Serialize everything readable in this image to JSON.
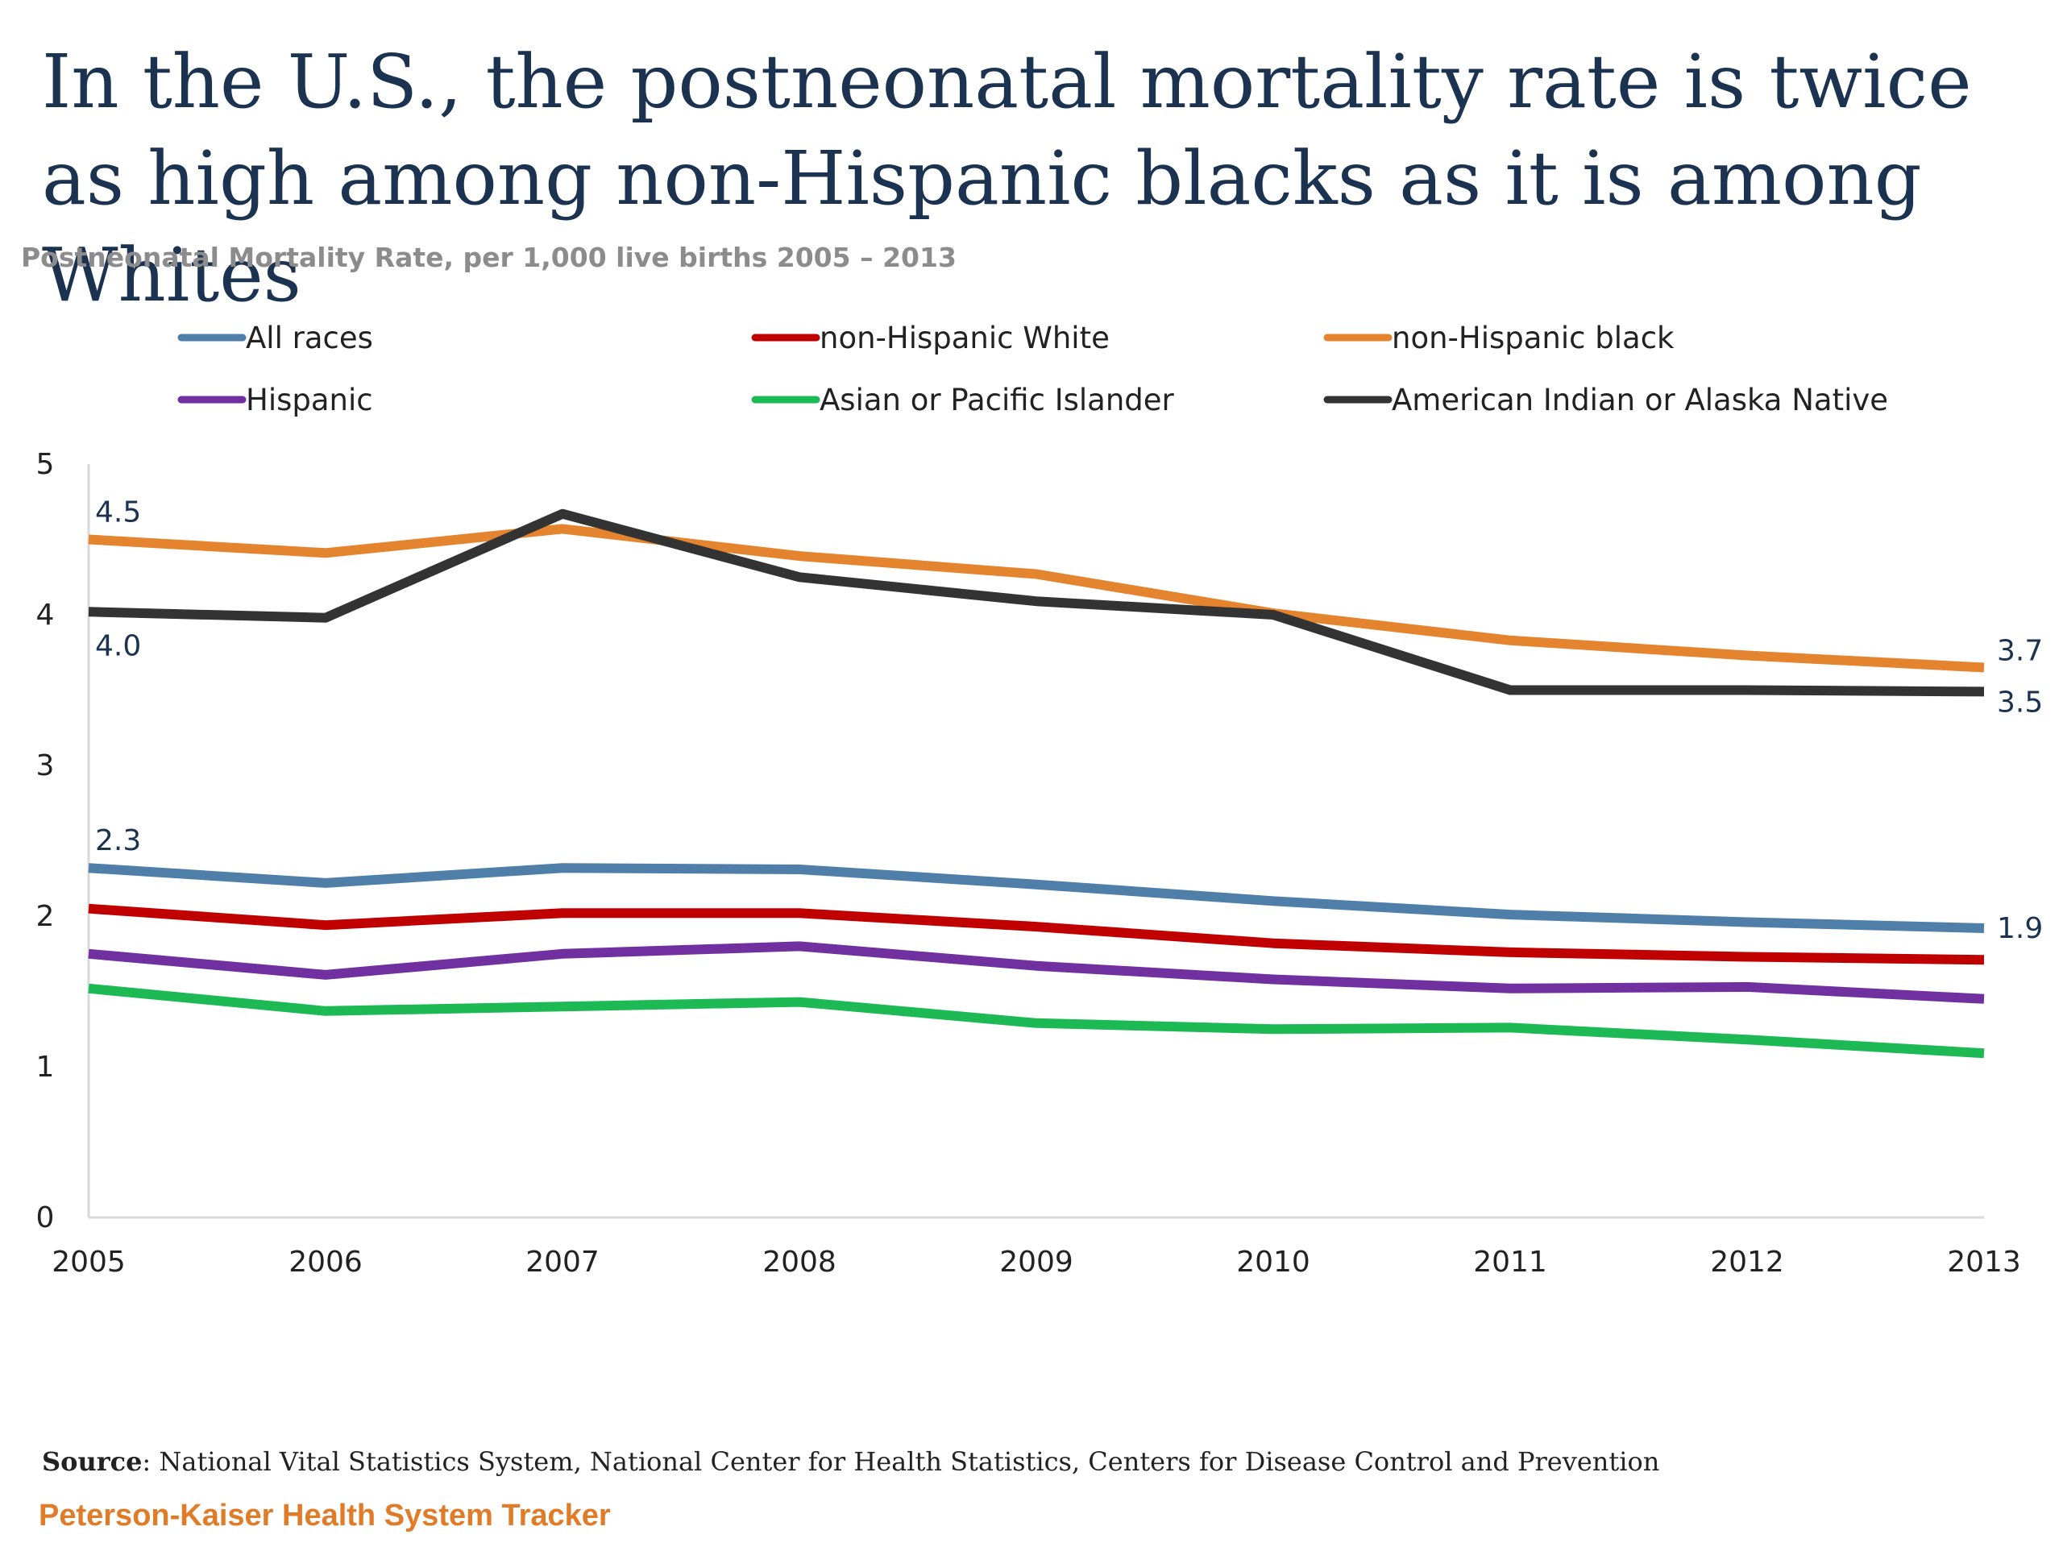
{
  "title": "In the U.S., the postneonatal mortality rate is twice as high among non-Hispanic blacks as it is among Whites",
  "subtitle": "Postneonatal Mortality Rate, per 1,000 live births 2005 – 2013",
  "source_label": "Source",
  "source_text": ": National Vital Statistics System, National Center for Health Statistics, Centers for Disease Control and Prevention",
  "brand": "Peterson-Kaiser Health System Tracker",
  "chart_data": {
    "type": "line",
    "title": "In the U.S., the postneonatal mortality rate is twice as high among non-Hispanic blacks as it is among Whites",
    "subtitle": "Postneonatal Mortality Rate, per 1,000 live births 2005 – 2013",
    "xlabel": "",
    "ylabel": "",
    "ylim": [
      0,
      5
    ],
    "yticks": [
      0,
      1,
      2,
      3,
      4,
      5
    ],
    "grid": false,
    "legend_position": "top",
    "x": [
      "2005",
      "2006",
      "2007",
      "2008",
      "2009",
      "2010",
      "2011",
      "2012",
      "2013"
    ],
    "series": [
      {
        "name": "All races",
        "color": "#4f7ea8",
        "values": [
          2.32,
          2.22,
          2.32,
          2.31,
          2.21,
          2.1,
          2.01,
          1.96,
          1.92
        ]
      },
      {
        "name": "non-Hispanic White",
        "color": "#c00000",
        "values": [
          2.05,
          1.94,
          2.02,
          2.02,
          1.93,
          1.82,
          1.76,
          1.73,
          1.71
        ]
      },
      {
        "name": "non-Hispanic black",
        "color": "#e5842e",
        "values": [
          4.5,
          4.41,
          4.57,
          4.39,
          4.27,
          4.01,
          3.83,
          3.73,
          3.65
        ]
      },
      {
        "name": "Hispanic",
        "color": "#7030a0",
        "values": [
          1.75,
          1.61,
          1.75,
          1.8,
          1.67,
          1.58,
          1.52,
          1.53,
          1.45
        ]
      },
      {
        "name": "Asian or Pacific Islander",
        "color": "#1db954",
        "values": [
          1.52,
          1.37,
          1.4,
          1.43,
          1.29,
          1.25,
          1.26,
          1.18,
          1.09
        ]
      },
      {
        "name": "American Indian or Alaska Native",
        "color": "#333333",
        "values": [
          4.02,
          3.98,
          4.67,
          4.25,
          4.09,
          4.0,
          3.5,
          3.5,
          3.49
        ]
      }
    ],
    "data_labels": [
      {
        "series": "non-Hispanic black",
        "x": "2005",
        "text": "4.5",
        "side": "above"
      },
      {
        "series": "American Indian or Alaska Native",
        "x": "2005",
        "text": "4.0",
        "side": "below"
      },
      {
        "series": "All races",
        "x": "2005",
        "text": "2.3",
        "side": "above"
      },
      {
        "series": "non-Hispanic black",
        "x": "2013",
        "text": "3.7",
        "side": "right-above"
      },
      {
        "series": "American Indian or Alaska Native",
        "x": "2013",
        "text": "3.5",
        "side": "right-below"
      },
      {
        "series": "All races",
        "x": "2013",
        "text": "1.9",
        "side": "right"
      }
    ]
  }
}
